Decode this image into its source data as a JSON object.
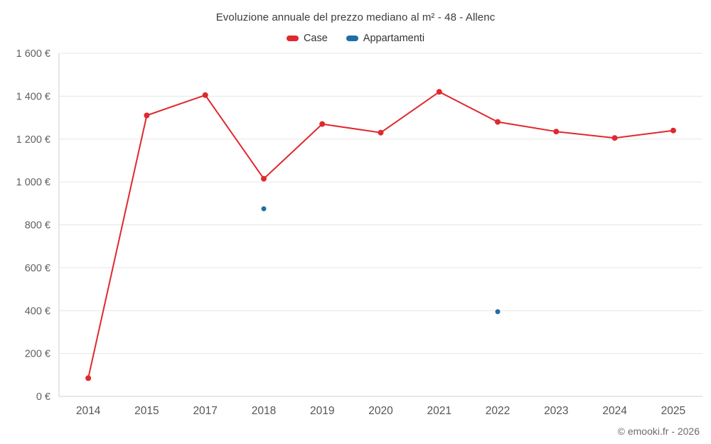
{
  "chart_data": {
    "type": "line",
    "title": "Evoluzione annuale del prezzo mediano al m² - 48 - Allenc",
    "categories": [
      "2014",
      "2015",
      "2017",
      "2018",
      "2019",
      "2020",
      "2021",
      "2022",
      "2023",
      "2024",
      "2025"
    ],
    "series": [
      {
        "name": "Case",
        "color": "#e0282e",
        "show_line": true,
        "marker_radius": 4,
        "values": [
          85,
          1310,
          1405,
          1015,
          1270,
          1230,
          1420,
          1280,
          1235,
          1205,
          1240
        ]
      },
      {
        "name": "Appartamenti",
        "color": "#1d6fa5",
        "show_line": false,
        "marker_radius": 3.5,
        "values": [
          null,
          null,
          null,
          875,
          null,
          null,
          null,
          395,
          null,
          null,
          null
        ]
      }
    ],
    "xlabel": "",
    "ylabel": "",
    "ylim": [
      0,
      1600
    ],
    "y_tick_step": 200,
    "y_tick_suffix": " €",
    "grid": true,
    "legend_position": "top",
    "grid_color": "#e6e6e6",
    "axis_color": "#cfcfcf",
    "label_color": "#606060"
  },
  "footer": {
    "copyright": "© emooki.fr - 2026"
  }
}
